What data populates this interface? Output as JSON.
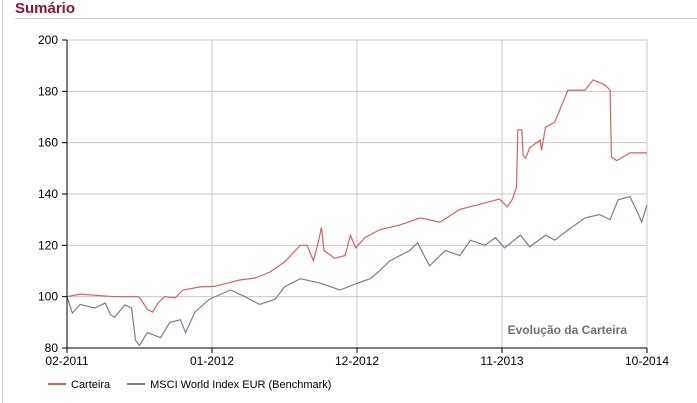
{
  "header": {
    "title": "Sumário"
  },
  "chart_data": {
    "type": "line",
    "title": "",
    "annotation": "Evolução da Carteira",
    "xlabel": "",
    "ylabel": "",
    "x_unit": "months since 02-2011",
    "xlim": [
      0,
      44
    ],
    "ylim": [
      80,
      200
    ],
    "yticks": [
      80,
      100,
      120,
      140,
      160,
      180,
      200
    ],
    "xticks": [
      {
        "x": 0,
        "label": "02-2011"
      },
      {
        "x": 11,
        "label": "01-2012"
      },
      {
        "x": 22,
        "label": "12-2012"
      },
      {
        "x": 33,
        "label": "11-2013"
      },
      {
        "x": 44,
        "label": "10-2014"
      }
    ],
    "grid": true,
    "legend_position": "bottom-left",
    "series": [
      {
        "name": "Carteira",
        "color": "#d06464",
        "points": [
          [
            0,
            100
          ],
          [
            1,
            101
          ],
          [
            3.6,
            100
          ],
          [
            5.4,
            100
          ],
          [
            5.6,
            99
          ],
          [
            6.1,
            95
          ],
          [
            6.5,
            94
          ],
          [
            6.9,
            97.5
          ],
          [
            7.4,
            100
          ],
          [
            8.2,
            99.5
          ],
          [
            8.8,
            102.6
          ],
          [
            10.1,
            103.8
          ],
          [
            11.2,
            104
          ],
          [
            13.1,
            106.5
          ],
          [
            14.3,
            107.3
          ],
          [
            15.4,
            109.6
          ],
          [
            16.5,
            113.5
          ],
          [
            17.7,
            120
          ],
          [
            18.2,
            120
          ],
          [
            18.7,
            114
          ],
          [
            19.1,
            122
          ],
          [
            19.3,
            127
          ],
          [
            19.5,
            118
          ],
          [
            20.3,
            115
          ],
          [
            21.1,
            116
          ],
          [
            21.5,
            124
          ],
          [
            21.9,
            119
          ],
          [
            22.6,
            123
          ],
          [
            23.7,
            126
          ],
          [
            25.3,
            128
          ],
          [
            26.8,
            130.7
          ],
          [
            28.3,
            129
          ],
          [
            29.8,
            134
          ],
          [
            31.3,
            136
          ],
          [
            32.8,
            138
          ],
          [
            33.4,
            135
          ],
          [
            33.8,
            138
          ],
          [
            34.1,
            142.7
          ],
          [
            34.2,
            165
          ],
          [
            34.5,
            165
          ],
          [
            34.6,
            155
          ],
          [
            34.8,
            154
          ],
          [
            35.1,
            158
          ],
          [
            35.9,
            161
          ],
          [
            36.0,
            157
          ],
          [
            36.3,
            166
          ],
          [
            37.0,
            168
          ],
          [
            37.4,
            173
          ],
          [
            38.0,
            180.5
          ],
          [
            39.3,
            180.5
          ],
          [
            39.9,
            184.4
          ],
          [
            40.8,
            182.5
          ],
          [
            41.2,
            180.5
          ],
          [
            41.3,
            154.4
          ],
          [
            41.7,
            153
          ],
          [
            42.7,
            156
          ],
          [
            43.5,
            156
          ],
          [
            44,
            156
          ]
        ]
      },
      {
        "name": "MSCI World Index EUR (Benchmark)",
        "color": "#7a7d98",
        "points": [
          [
            0,
            100
          ],
          [
            0.4,
            93.6
          ],
          [
            1,
            97
          ],
          [
            2.1,
            95.6
          ],
          [
            2.9,
            97.5
          ],
          [
            3.3,
            93
          ],
          [
            3.6,
            92
          ],
          [
            4.4,
            96.8
          ],
          [
            4.9,
            95.6
          ],
          [
            5.2,
            83
          ],
          [
            5.5,
            81
          ],
          [
            6.1,
            86
          ],
          [
            7.1,
            84
          ],
          [
            7.8,
            90
          ],
          [
            8.6,
            91
          ],
          [
            9,
            86
          ],
          [
            9.7,
            94
          ],
          [
            10.8,
            99
          ],
          [
            12.4,
            102.6
          ],
          [
            13.5,
            100
          ],
          [
            14.6,
            97
          ],
          [
            15.8,
            99
          ],
          [
            16.5,
            103.8
          ],
          [
            17.7,
            107
          ],
          [
            19.2,
            105.3
          ],
          [
            20.7,
            102.6
          ],
          [
            21.9,
            105
          ],
          [
            23,
            107
          ],
          [
            23.7,
            110
          ],
          [
            24.5,
            114
          ],
          [
            26,
            118
          ],
          [
            26.6,
            121
          ],
          [
            27.5,
            112
          ],
          [
            28.7,
            118
          ],
          [
            29.8,
            116
          ],
          [
            30.6,
            122
          ],
          [
            31.7,
            120
          ],
          [
            32.5,
            123
          ],
          [
            33.2,
            119
          ],
          [
            34.4,
            124
          ],
          [
            35.1,
            119.4
          ],
          [
            36.3,
            124
          ],
          [
            37,
            122
          ],
          [
            38.2,
            126.7
          ],
          [
            39.3,
            130.7
          ],
          [
            40.4,
            132
          ],
          [
            41.2,
            130
          ],
          [
            41.8,
            137.7
          ],
          [
            42.7,
            139
          ],
          [
            43.3,
            132.6
          ],
          [
            43.6,
            129
          ],
          [
            44,
            135.7
          ]
        ]
      }
    ]
  }
}
